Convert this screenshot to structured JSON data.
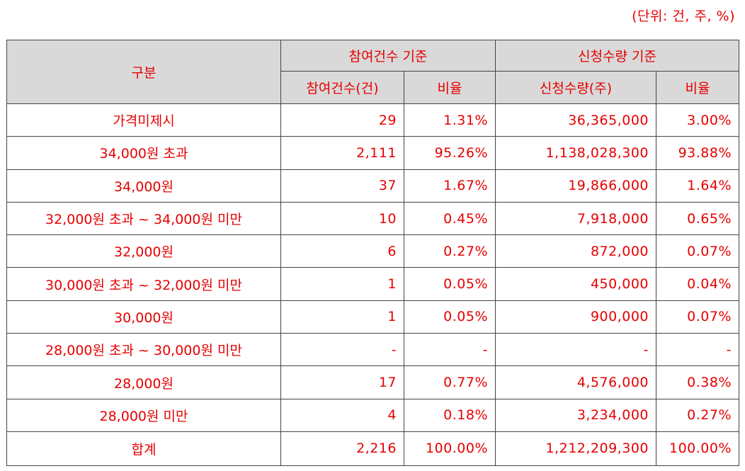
{
  "unit_note": "(단위: 건, 주, %)",
  "header": {
    "category": "구분",
    "group_participation": "참여건수 기준",
    "group_subscription": "신청수량 기준",
    "participation_count": "참여건수(건)",
    "participation_ratio": "비율",
    "subscription_qty": "신청수량(주)",
    "subscription_ratio": "비율"
  },
  "rows": [
    {
      "label": "가격미제시",
      "count": "29",
      "count_ratio": "1.31%",
      "qty": "36,365,000",
      "qty_ratio": "3.00%"
    },
    {
      "label": "34,000원 초과",
      "count": "2,111",
      "count_ratio": "95.26%",
      "qty": "1,138,028,300",
      "qty_ratio": "93.88%"
    },
    {
      "label": "34,000원",
      "count": "37",
      "count_ratio": "1.67%",
      "qty": "19,866,000",
      "qty_ratio": "1.64%"
    },
    {
      "label": "32,000원 초과 ~ 34,000원 미만",
      "count": "10",
      "count_ratio": "0.45%",
      "qty": "7,918,000",
      "qty_ratio": "0.65%"
    },
    {
      "label": "32,000원",
      "count": "6",
      "count_ratio": "0.27%",
      "qty": "872,000",
      "qty_ratio": "0.07%"
    },
    {
      "label": "30,000원 초과 ~ 32,000원 미만",
      "count": "1",
      "count_ratio": "0.05%",
      "qty": "450,000",
      "qty_ratio": "0.04%"
    },
    {
      "label": "30,000원",
      "count": "1",
      "count_ratio": "0.05%",
      "qty": "900,000",
      "qty_ratio": "0.07%"
    },
    {
      "label": "28,000원 초과 ~ 30,000원 미만",
      "count": "-",
      "count_ratio": "-",
      "qty": "-",
      "qty_ratio": "-"
    },
    {
      "label": "28,000원",
      "count": "17",
      "count_ratio": "0.77%",
      "qty": "4,576,000",
      "qty_ratio": "0.38%"
    },
    {
      "label": "28,000원 미만",
      "count": "4",
      "count_ratio": "0.18%",
      "qty": "3,234,000",
      "qty_ratio": "0.27%"
    }
  ],
  "total": {
    "label": "합계",
    "count": "2,216",
    "count_ratio": "100.00%",
    "qty": "1,212,209,300",
    "qty_ratio": "100.00%"
  }
}
